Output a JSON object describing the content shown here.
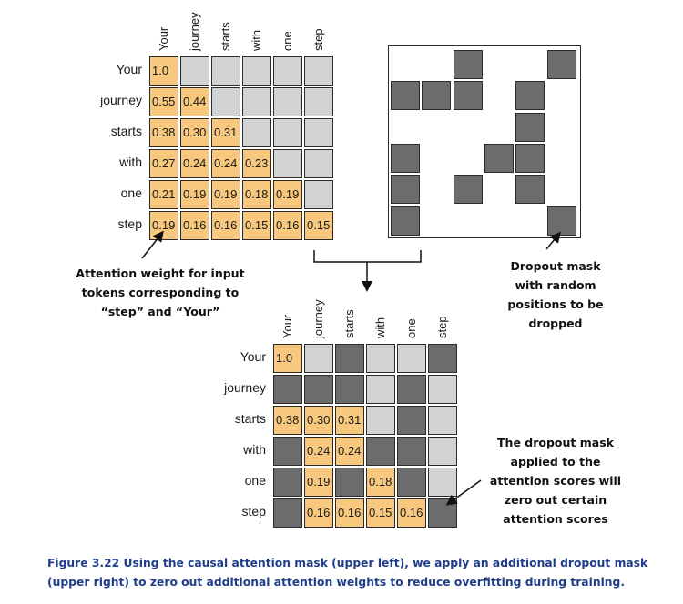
{
  "tokens": [
    "Your",
    "journey",
    "starts",
    "with",
    "one",
    "step"
  ],
  "causal_attention": [
    [
      "1.0",
      "",
      "",
      "",
      "",
      ""
    ],
    [
      "0.55",
      "0.44",
      "",
      "",
      "",
      ""
    ],
    [
      "0.38",
      "0.30",
      "0.31",
      "",
      "",
      ""
    ],
    [
      "0.27",
      "0.24",
      "0.24",
      "0.23",
      "",
      ""
    ],
    [
      "0.21",
      "0.19",
      "0.19",
      "0.18",
      "0.19",
      ""
    ],
    [
      "0.19",
      "0.16",
      "0.16",
      "0.15",
      "0.16",
      "0.15"
    ]
  ],
  "dropout_mask": [
    [
      0,
      0,
      1,
      0,
      0,
      1
    ],
    [
      1,
      1,
      1,
      0,
      1,
      0
    ],
    [
      0,
      0,
      0,
      0,
      1,
      0
    ],
    [
      1,
      0,
      0,
      1,
      1,
      0
    ],
    [
      1,
      0,
      1,
      0,
      1,
      0
    ],
    [
      1,
      0,
      0,
      0,
      0,
      1
    ]
  ],
  "dropout_applied": [
    [
      "1.0",
      "",
      "",
      "",
      "",
      ""
    ],
    [
      "",
      "",
      "",
      "",
      "",
      ""
    ],
    [
      "0.38",
      "0.30",
      "0.31",
      "",
      "",
      ""
    ],
    [
      "",
      "0.24",
      "0.24",
      "",
      "",
      ""
    ],
    [
      "",
      "0.19",
      "",
      "0.18",
      "",
      ""
    ],
    [
      "",
      "0.16",
      "0.16",
      "0.15",
      "0.16",
      ""
    ]
  ],
  "dropout_applied_dark": [
    [
      0,
      0,
      1,
      0,
      0,
      1
    ],
    [
      1,
      1,
      1,
      0,
      1,
      0
    ],
    [
      0,
      0,
      0,
      0,
      1,
      0
    ],
    [
      1,
      0,
      0,
      1,
      1,
      0
    ],
    [
      1,
      0,
      1,
      0,
      1,
      0
    ],
    [
      1,
      0,
      0,
      0,
      0,
      1
    ]
  ],
  "annotations": {
    "attention_weight": [
      "Attention weight for input",
      "tokens corresponding to",
      "“step” and “Your”"
    ],
    "dropout_mask": [
      "Dropout mask",
      "with random",
      "positions to be",
      "dropped"
    ],
    "applied": [
      "The dropout mask",
      "applied to the",
      "attention scores will",
      "zero out certain",
      "attention scores"
    ]
  },
  "caption": "Figure 3.22 Using the causal attention mask (upper left), we apply an additional dropout mask (upper right) to zero out additional attention weights to reduce overfitting during training.",
  "colors": {
    "weight": "#f7c87d",
    "masked": "#d3d3d3",
    "dropped": "#6c6c6c",
    "caption": "#1f3d8a"
  }
}
